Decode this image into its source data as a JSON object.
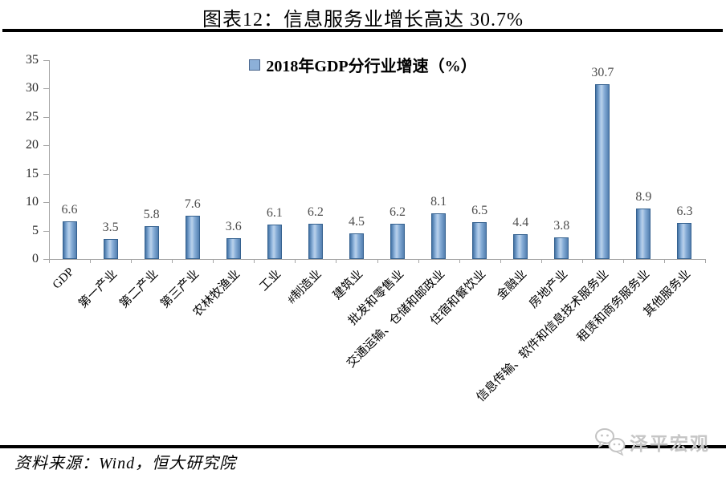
{
  "header": {
    "title": "图表12：信息服务业增长高达 30.7%"
  },
  "chart_data": {
    "type": "bar",
    "title": "图表12：信息服务业增长高达 30.7%",
    "legend": "2018年GDP分行业增速（%）",
    "legend_position": "top-center",
    "grid": false,
    "categories": [
      "GDP",
      "第一产业",
      "第二产业",
      "第三产业",
      "农林牧渔业",
      "工业",
      "#制造业",
      "建筑业",
      "批发和零售业",
      "交通运输、仓储和邮政业",
      "住宿和餐饮业",
      "金融业",
      "房地产业",
      "信息传输、软件和信息技术服务业",
      "租赁和商务服务业",
      "其他服务业"
    ],
    "values": [
      6.6,
      3.5,
      5.8,
      7.6,
      3.6,
      6.1,
      6.2,
      4.5,
      6.2,
      8.1,
      6.5,
      4.4,
      3.8,
      30.7,
      8.9,
      6.3
    ],
    "ylim": [
      0,
      35
    ],
    "yticks": [
      0,
      5,
      10,
      15,
      20,
      25,
      30,
      35
    ],
    "colors": {
      "bar_fill_dark": "#4272a5",
      "bar_fill_light": "#bad1ea",
      "bar_border": "#35618f",
      "axis": "#a6a6a6",
      "value_label": "#4d4d4d",
      "legend_swatch": "#8cb0d8"
    }
  },
  "footer": {
    "source": "资料来源：Wind，恒大研究院"
  },
  "logo": {
    "text": "泽平宏观",
    "icon": "chat-bubbles-icon"
  }
}
